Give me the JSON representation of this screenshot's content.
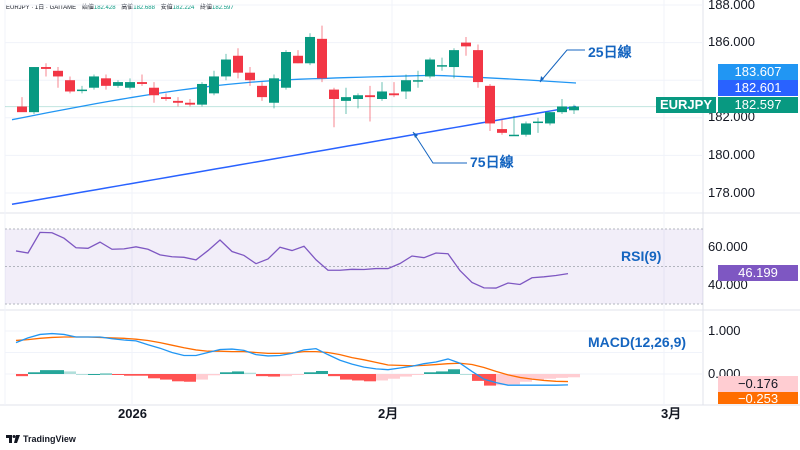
{
  "header": {
    "symbol": "EURJPY",
    "interval": "1日",
    "source": "GAITAME",
    "open_label": "始値",
    "open": "182.428",
    "high_label": "高値",
    "high": "182.688",
    "low_label": "安値",
    "low": "182.224",
    "close_label": "終値",
    "close": "182.597"
  },
  "price_axis": {
    "ticks": [
      "188.000",
      "186.000",
      "182.000",
      "180.000",
      "178.000"
    ],
    "tag_ma25": "183.607",
    "tag_ma75": "182.601",
    "tag_symbol": "EURJPY",
    "tag_last": "182.597"
  },
  "annotations": {
    "ma25": "25日線",
    "ma75": "75日線",
    "rsi": "RSI(9)",
    "macd": "MACD(12,26,9)"
  },
  "rsi_axis": {
    "ticks": [
      "60.000",
      "40.000"
    ],
    "tag": "46.199"
  },
  "macd_axis": {
    "ticks": [
      "1.000",
      "0.000"
    ],
    "tag_signal": "−0.176",
    "tag_macd": "−0.253"
  },
  "time_axis": {
    "labels": [
      "2026",
      "2月",
      "3月"
    ]
  },
  "branding": {
    "logo": "TradingView"
  },
  "colors": {
    "up": "#089981",
    "down": "#f23645",
    "ma25": "#2196f3",
    "ma75": "#2962ff",
    "rsi": "#7e57c2",
    "macd": "#2196f3",
    "signal": "#ff6d00",
    "tag_ma25": "#2196f3",
    "tag_ma75": "#2962ff",
    "tag_last": "#089981",
    "tag_rsi": "#7e57c2",
    "tag_signal": "#ffcdd2",
    "tag_macd": "#ff6d00"
  },
  "chart_data": [
    {
      "type": "candlestick",
      "title": "EURJPY · 1日 · GAITAME",
      "ylim": [
        177.0,
        188.0
      ],
      "y_ticks": [
        178,
        180,
        182,
        186,
        188
      ],
      "x_labels": [
        "2026",
        "2月",
        "3月"
      ],
      "candles": [
        {
          "o": 182.6,
          "h": 183.1,
          "l": 182.4,
          "c": 182.3
        },
        {
          "o": 182.3,
          "h": 184.7,
          "l": 182.2,
          "c": 184.7
        },
        {
          "o": 184.7,
          "h": 184.9,
          "l": 184.2,
          "c": 184.6
        },
        {
          "o": 184.5,
          "h": 184.7,
          "l": 183.6,
          "c": 184.2
        },
        {
          "o": 184.0,
          "h": 184.2,
          "l": 183.3,
          "c": 183.4
        },
        {
          "o": 183.5,
          "h": 183.7,
          "l": 183.3,
          "c": 183.5
        },
        {
          "o": 183.6,
          "h": 184.3,
          "l": 183.5,
          "c": 184.2
        },
        {
          "o": 184.1,
          "h": 184.3,
          "l": 183.5,
          "c": 183.7
        },
        {
          "o": 183.7,
          "h": 184.0,
          "l": 183.6,
          "c": 183.9
        },
        {
          "o": 183.6,
          "h": 184.1,
          "l": 183.5,
          "c": 183.9
        },
        {
          "o": 183.9,
          "h": 184.3,
          "l": 183.7,
          "c": 183.8
        },
        {
          "o": 183.6,
          "h": 183.9,
          "l": 182.8,
          "c": 183.2
        },
        {
          "o": 183.1,
          "h": 183.3,
          "l": 182.9,
          "c": 183.0
        },
        {
          "o": 182.9,
          "h": 183.1,
          "l": 182.6,
          "c": 182.8
        },
        {
          "o": 182.8,
          "h": 183.0,
          "l": 182.6,
          "c": 182.7
        },
        {
          "o": 182.7,
          "h": 183.9,
          "l": 182.6,
          "c": 183.8
        },
        {
          "o": 183.3,
          "h": 184.5,
          "l": 183.2,
          "c": 184.2
        },
        {
          "o": 184.2,
          "h": 185.4,
          "l": 184.0,
          "c": 185.1
        },
        {
          "o": 185.3,
          "h": 185.7,
          "l": 184.1,
          "c": 184.4
        },
        {
          "o": 184.4,
          "h": 184.7,
          "l": 183.7,
          "c": 184.0
        },
        {
          "o": 183.7,
          "h": 183.9,
          "l": 182.9,
          "c": 183.1
        },
        {
          "o": 182.8,
          "h": 184.3,
          "l": 182.5,
          "c": 184.1
        },
        {
          "o": 183.6,
          "h": 185.6,
          "l": 183.5,
          "c": 185.5
        },
        {
          "o": 185.3,
          "h": 185.6,
          "l": 184.9,
          "c": 184.9
        },
        {
          "o": 184.9,
          "h": 186.5,
          "l": 184.8,
          "c": 186.3
        },
        {
          "o": 186.2,
          "h": 186.9,
          "l": 183.9,
          "c": 184.1
        },
        {
          "o": 183.5,
          "h": 183.6,
          "l": 181.5,
          "c": 183.0
        },
        {
          "o": 182.9,
          "h": 183.6,
          "l": 182.2,
          "c": 183.1
        },
        {
          "o": 183.0,
          "h": 183.3,
          "l": 182.5,
          "c": 183.2
        },
        {
          "o": 183.2,
          "h": 183.7,
          "l": 181.8,
          "c": 183.1
        },
        {
          "o": 183.0,
          "h": 183.9,
          "l": 182.9,
          "c": 183.4
        },
        {
          "o": 183.3,
          "h": 183.9,
          "l": 183.1,
          "c": 183.2
        },
        {
          "o": 183.4,
          "h": 184.3,
          "l": 183.0,
          "c": 184.0
        },
        {
          "o": 184.0,
          "h": 184.5,
          "l": 183.6,
          "c": 184.0
        },
        {
          "o": 184.2,
          "h": 185.2,
          "l": 184.1,
          "c": 185.1
        },
        {
          "o": 184.8,
          "h": 185.2,
          "l": 184.5,
          "c": 184.8
        },
        {
          "o": 184.7,
          "h": 185.7,
          "l": 184.1,
          "c": 185.6
        },
        {
          "o": 186.0,
          "h": 186.3,
          "l": 185.3,
          "c": 185.8
        },
        {
          "o": 185.6,
          "h": 185.9,
          "l": 183.6,
          "c": 183.9
        },
        {
          "o": 183.7,
          "h": 183.8,
          "l": 181.3,
          "c": 181.7
        },
        {
          "o": 181.4,
          "h": 181.9,
          "l": 181.1,
          "c": 181.2
        },
        {
          "o": 181.1,
          "h": 182.1,
          "l": 181.1,
          "c": 181.1
        },
        {
          "o": 181.1,
          "h": 181.8,
          "l": 181.0,
          "c": 181.7
        },
        {
          "o": 181.8,
          "h": 182.0,
          "l": 181.2,
          "c": 181.8
        },
        {
          "o": 181.7,
          "h": 182.3,
          "l": 181.6,
          "c": 182.3
        },
        {
          "o": 182.3,
          "h": 183.0,
          "l": 182.2,
          "c": 182.6
        },
        {
          "o": 182.4,
          "h": 182.7,
          "l": 182.2,
          "c": 182.6
        }
      ],
      "series": [
        {
          "name": "25日線",
          "last": 183.607
        },
        {
          "name": "75日線",
          "last": 182.601
        }
      ]
    },
    {
      "type": "line",
      "title": "RSI(9)",
      "ylim": [
        30,
        72
      ],
      "y_ticks": [
        40,
        60
      ],
      "bands": [
        30,
        50,
        70
      ],
      "values": [
        58.3,
        57.2,
        68.2,
        68.0,
        65.1,
        60.0,
        59.7,
        63.0,
        59.2,
        59.4,
        60.5,
        59.2,
        56.2,
        55.2,
        54.9,
        53.5,
        58.5,
        64.1,
        58.0,
        55.9,
        51.5,
        54.0,
        60.3,
        58.5,
        60.8,
        53.6,
        48.0,
        48.0,
        48.5,
        48.4,
        48.9,
        48.9,
        51.6,
        55.6,
        54.7,
        57.2,
        56.8,
        47.8,
        41.5,
        38.6,
        38.5,
        41.2,
        40.4,
        44.0,
        44.5,
        45.2,
        46.2
      ],
      "last": 46.199
    },
    {
      "type": "line+histogram",
      "title": "MACD(12,26,9)",
      "ylim": [
        -0.4,
        1.3
      ],
      "y_ticks": [
        0,
        1
      ],
      "macd": [
        0.73,
        0.84,
        0.92,
        0.94,
        0.92,
        0.86,
        0.86,
        0.86,
        0.82,
        0.79,
        0.77,
        0.68,
        0.6,
        0.5,
        0.43,
        0.43,
        0.5,
        0.57,
        0.58,
        0.55,
        0.45,
        0.42,
        0.43,
        0.48,
        0.56,
        0.59,
        0.45,
        0.32,
        0.23,
        0.16,
        0.12,
        0.1,
        0.14,
        0.18,
        0.24,
        0.28,
        0.35,
        0.25,
        0.06,
        -0.12,
        -0.2,
        -0.26,
        -0.26,
        -0.26,
        -0.26,
        -0.26,
        -0.253
      ],
      "signal": [
        0.78,
        0.8,
        0.83,
        0.85,
        0.86,
        0.86,
        0.86,
        0.85,
        0.84,
        0.83,
        0.81,
        0.78,
        0.73,
        0.67,
        0.61,
        0.56,
        0.53,
        0.53,
        0.52,
        0.52,
        0.5,
        0.48,
        0.48,
        0.49,
        0.52,
        0.52,
        0.5,
        0.45,
        0.38,
        0.33,
        0.27,
        0.21,
        0.2,
        0.19,
        0.2,
        0.22,
        0.24,
        0.25,
        0.22,
        0.15,
        0.06,
        -0.02,
        -0.08,
        -0.12,
        -0.15,
        -0.17,
        -0.176
      ],
      "histogram": [
        -0.05,
        0.04,
        0.09,
        0.09,
        0.06,
        0.0,
        0.0,
        0.01,
        -0.02,
        -0.04,
        -0.04,
        -0.1,
        -0.13,
        -0.17,
        -0.18,
        -0.13,
        -0.03,
        0.04,
        0.06,
        0.03,
        -0.05,
        -0.06,
        -0.05,
        -0.01,
        0.04,
        0.07,
        -0.05,
        -0.13,
        -0.15,
        -0.17,
        -0.15,
        -0.11,
        -0.06,
        -0.01,
        0.04,
        0.06,
        0.11,
        0.0,
        -0.16,
        -0.27,
        -0.26,
        -0.24,
        -0.18,
        -0.14,
        -0.11,
        -0.09,
        -0.077
      ],
      "last_macd": -0.253,
      "last_signal": -0.176
    }
  ]
}
